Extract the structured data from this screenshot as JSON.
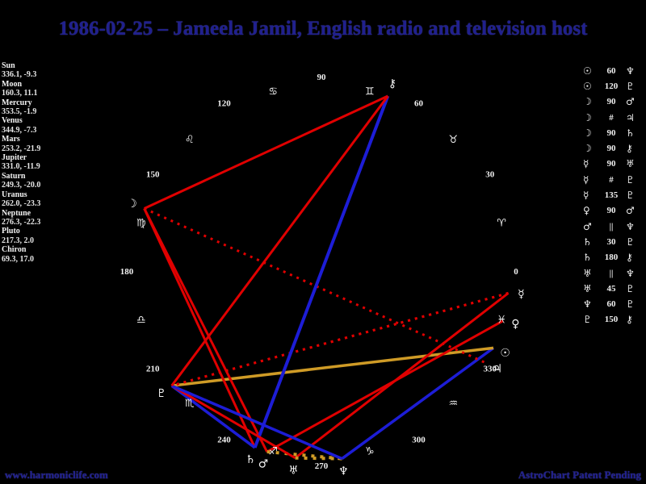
{
  "title": "1986-02-25 – Jameela Jamil, English radio and television host",
  "footer": {
    "site": "www.harmoniclife.com",
    "tagline": "AstroChart Patent Pending"
  },
  "colors": {
    "background": "#000000",
    "title_text": "#20208e",
    "panel_text": "#f0f0f0",
    "hard_aspect_red": "#e00000",
    "soft_aspect_blue": "#1d1dd6",
    "trine_aspect_gold": "#cf9b26"
  },
  "glyphs": {
    "planets": {
      "Sun": "☉",
      "Moon": "☽",
      "Mercury": "☿",
      "Venus": "♀",
      "Mars": "♂",
      "Jupiter": "♃",
      "Saturn": "♄",
      "Uranus": "♅",
      "Neptune": "♆",
      "Pluto": "♇",
      "Chiron": "⚷"
    },
    "signs": {
      "Aries": "♈",
      "Taurus": "♉",
      "Gemini": "♊",
      "Cancer": "♋",
      "Leo": "♌",
      "Virgo": "♍",
      "Libra": "♎",
      "Scorpio": "♏",
      "Sagittarius": "♐",
      "Capricorn": "♑",
      "Aquarius": "♒",
      "Pisces": "♓"
    },
    "parallel": "||",
    "contraparallel": "#"
  },
  "chart_data": {
    "type": "scatter",
    "subtype": "astrology-aspect-wheel",
    "title": "1986-02-25 – Jameela Jamil, English radio and television host",
    "angular_axis": {
      "unit": "ecliptic longitude (degrees)",
      "zero_position": "right",
      "direction": "counterclockwise",
      "tick_labels": [
        "0",
        "30",
        "60",
        "90",
        "120",
        "150",
        "180",
        "210",
        "240",
        "270",
        "300",
        "330"
      ]
    },
    "planets": [
      {
        "name": "Sun",
        "longitude": 336.1,
        "declination": -9.3
      },
      {
        "name": "Moon",
        "longitude": 160.3,
        "declination": 11.1
      },
      {
        "name": "Mercury",
        "longitude": 353.5,
        "declination": -1.9
      },
      {
        "name": "Venus",
        "longitude": 344.9,
        "declination": -7.3
      },
      {
        "name": "Mars",
        "longitude": 253.2,
        "declination": -21.9
      },
      {
        "name": "Jupiter",
        "longitude": 331.0,
        "declination": -11.9
      },
      {
        "name": "Saturn",
        "longitude": 249.3,
        "declination": -20.0
      },
      {
        "name": "Uranus",
        "longitude": 262.0,
        "declination": -23.3
      },
      {
        "name": "Neptune",
        "longitude": 276.3,
        "declination": -22.3
      },
      {
        "name": "Pluto",
        "longitude": 217.3,
        "declination": 2.0
      },
      {
        "name": "Chiron",
        "longitude": 69.3,
        "declination": 17.0
      }
    ],
    "zodiac_signs": [
      {
        "name": "Aries",
        "mid_longitude": 15
      },
      {
        "name": "Taurus",
        "mid_longitude": 45
      },
      {
        "name": "Gemini",
        "mid_longitude": 75
      },
      {
        "name": "Cancer",
        "mid_longitude": 105
      },
      {
        "name": "Leo",
        "mid_longitude": 135
      },
      {
        "name": "Virgo",
        "mid_longitude": 165
      },
      {
        "name": "Libra",
        "mid_longitude": 195
      },
      {
        "name": "Scorpio",
        "mid_longitude": 225
      },
      {
        "name": "Sagittarius",
        "mid_longitude": 255
      },
      {
        "name": "Capricorn",
        "mid_longitude": 285
      },
      {
        "name": "Aquarius",
        "mid_longitude": 315
      },
      {
        "name": "Pisces",
        "mid_longitude": 345
      }
    ],
    "aspects": [
      {
        "a": "Sun",
        "type": "60",
        "b": "Neptune"
      },
      {
        "a": "Sun",
        "type": "120",
        "b": "Pluto"
      },
      {
        "a": "Moon",
        "type": "90",
        "b": "Mars"
      },
      {
        "a": "Moon",
        "type": "#",
        "b": "Jupiter"
      },
      {
        "a": "Moon",
        "type": "90",
        "b": "Saturn"
      },
      {
        "a": "Moon",
        "type": "90",
        "b": "Chiron"
      },
      {
        "a": "Mercury",
        "type": "90",
        "b": "Uranus"
      },
      {
        "a": "Mercury",
        "type": "#",
        "b": "Pluto"
      },
      {
        "a": "Mercury",
        "type": "135",
        "b": "Pluto"
      },
      {
        "a": "Venus",
        "type": "90",
        "b": "Mars"
      },
      {
        "a": "Mars",
        "type": "||",
        "b": "Neptune"
      },
      {
        "a": "Saturn",
        "type": "30",
        "b": "Pluto"
      },
      {
        "a": "Saturn",
        "type": "180",
        "b": "Chiron"
      },
      {
        "a": "Uranus",
        "type": "||",
        "b": "Neptune"
      },
      {
        "a": "Uranus",
        "type": "45",
        "b": "Pluto"
      },
      {
        "a": "Neptune",
        "type": "60",
        "b": "Pluto"
      },
      {
        "a": "Pluto",
        "type": "150",
        "b": "Chiron"
      }
    ]
  }
}
